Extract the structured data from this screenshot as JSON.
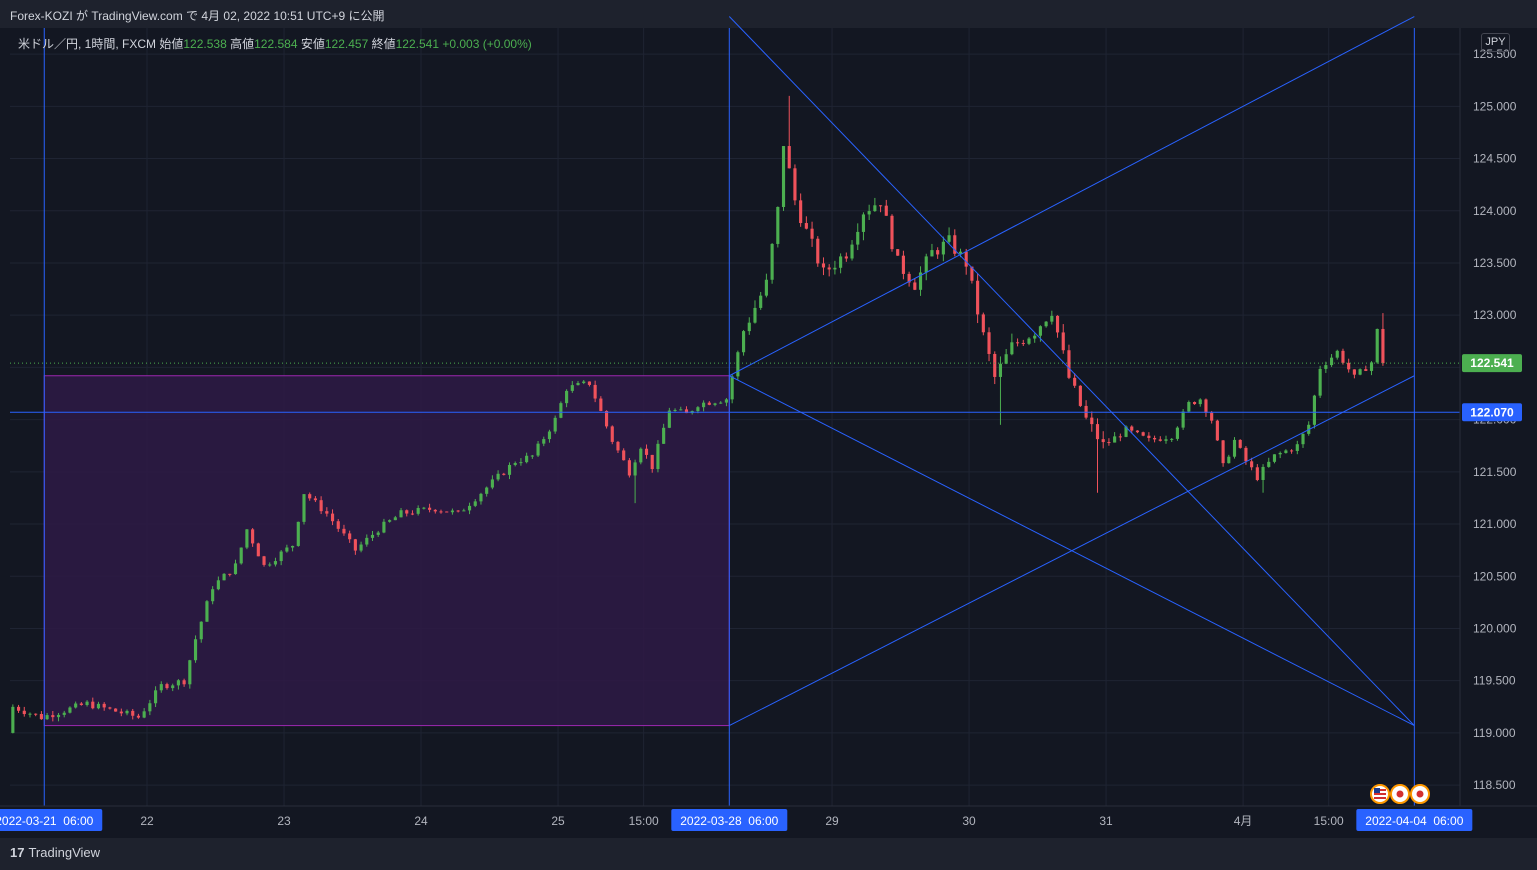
{
  "header": {
    "title": "Forex-KOZI が TradingView.com で 4月 02, 2022 10:51 UTC+9 に公開"
  },
  "legend": {
    "symbol": "米ドル／円, 1時間, FXCM",
    "open_label": "始値",
    "open": "122.538",
    "high_label": "高値",
    "high": "122.584",
    "low_label": "安値",
    "low": "122.457",
    "close_label": "終値",
    "close": "122.541",
    "change": "+0.003 (+0.00%)"
  },
  "currency": "JPY",
  "brand": {
    "logo": "17",
    "name": "TradingView"
  },
  "colors": {
    "background": "#131722",
    "up": "#4caf50",
    "down": "#f0525b",
    "drawing": "#2962ff",
    "rect_border": "#9c27b0",
    "rect_fill": "#2e1a45",
    "price_tag": "#4caf50",
    "line_tag": "#2962ff"
  },
  "chart_data": {
    "type": "candlestick",
    "instrument": "米ドル／円",
    "timeframe": "1時間",
    "y_range": [
      118.3,
      125.75
    ],
    "y_ticks": [
      "118.500",
      "119.000",
      "119.500",
      "120.000",
      "120.500",
      "121.000",
      "121.500",
      "122.000",
      "122.500",
      "123.000",
      "123.500",
      "124.000",
      "124.500",
      "125.000",
      "125.500"
    ],
    "x_range": [
      "2022-03-20 22:00",
      "2022-04-04 14:00"
    ],
    "x_ticks": [
      {
        "label": "22",
        "t": "2022-03-22 00:00"
      },
      {
        "label": "23",
        "t": "2022-03-23 00:00"
      },
      {
        "label": "24",
        "t": "2022-03-24 00:00"
      },
      {
        "label": "25",
        "t": "2022-03-25 00:00"
      },
      {
        "label": "15:00",
        "t": "2022-03-25 15:00"
      },
      {
        "label": "29",
        "t": "2022-03-29 00:00"
      },
      {
        "label": "30",
        "t": "2022-03-30 00:00"
      },
      {
        "label": "31",
        "t": "2022-03-31 00:00"
      },
      {
        "label": "4月",
        "t": "2022-04-01 00:00"
      },
      {
        "label": "15:00",
        "t": "2022-04-01 15:00"
      }
    ],
    "x_markers": [
      {
        "label": "2022-03-21  06:00",
        "t": "2022-03-21 06:00"
      },
      {
        "label": "2022-03-28  06:00",
        "t": "2022-03-28 06:00"
      },
      {
        "label": "2022-04-04  06:00",
        "t": "2022-04-04 06:00"
      }
    ],
    "last_price": {
      "value": 122.541,
      "label": "122.541"
    },
    "h_line": {
      "value": 122.07,
      "label": "122.070"
    },
    "rectangle": {
      "t1": "2022-03-21 06:00",
      "t2": "2022-03-28 06:00",
      "y1": 119.07,
      "y2": 122.42
    },
    "lines": [
      {
        "t1": "2022-03-28 06:00",
        "y1": 125.86,
        "t2": "2022-04-04 06:00",
        "y2": 119.07
      },
      {
        "t1": "2022-03-28 06:00",
        "y1": 122.42,
        "t2": "2022-04-04 06:00",
        "y2": 125.86
      },
      {
        "t1": "2022-03-28 06:00",
        "y1": 122.42,
        "t2": "2022-04-04 06:00",
        "y2": 119.07
      },
      {
        "t1": "2022-03-28 06:00",
        "y1": 119.07,
        "t2": "2022-04-04 06:00",
        "y2": 122.42
      }
    ],
    "price_path": [
      {
        "t": "2022-03-20 22:00",
        "v": 119.0
      },
      {
        "t": "2022-03-21 01:00",
        "v": 119.25
      },
      {
        "t": "2022-03-21 06:00",
        "v": 119.15
      },
      {
        "t": "2022-03-21 14:00",
        "v": 119.28
      },
      {
        "t": "2022-03-21 23:00",
        "v": 119.15
      },
      {
        "t": "2022-03-22 03:00",
        "v": 119.45
      },
      {
        "t": "2022-03-22 07:00",
        "v": 119.5
      },
      {
        "t": "2022-03-22 09:00",
        "v": 119.9
      },
      {
        "t": "2022-03-22 12:00",
        "v": 120.4
      },
      {
        "t": "2022-03-22 16:00",
        "v": 120.6
      },
      {
        "t": "2022-03-22 18:00",
        "v": 120.95
      },
      {
        "t": "2022-03-22 21:00",
        "v": 120.6
      },
      {
        "t": "2022-03-23 02:00",
        "v": 120.8
      },
      {
        "t": "2022-03-23 04:00",
        "v": 121.3
      },
      {
        "t": "2022-03-23 08:00",
        "v": 121.1
      },
      {
        "t": "2022-03-23 13:00",
        "v": 120.75
      },
      {
        "t": "2022-03-23 17:00",
        "v": 120.95
      },
      {
        "t": "2022-03-23 21:00",
        "v": 121.1
      },
      {
        "t": "2022-03-24 03:00",
        "v": 121.15
      },
      {
        "t": "2022-03-24 07:00",
        "v": 121.1
      },
      {
        "t": "2022-03-24 12:00",
        "v": 121.35
      },
      {
        "t": "2022-03-24 17:00",
        "v": 121.6
      },
      {
        "t": "2022-03-24 20:00",
        "v": 121.65
      },
      {
        "t": "2022-03-25 00:00",
        "v": 122.0
      },
      {
        "t": "2022-03-25 02:00",
        "v": 122.3
      },
      {
        "t": "2022-03-25 06:00",
        "v": 122.35
      },
      {
        "t": "2022-03-25 10:00",
        "v": 121.8
      },
      {
        "t": "2022-03-25 13:00",
        "v": 121.5
      },
      {
        "t": "2022-03-25 15:00",
        "v": 121.75
      },
      {
        "t": "2022-03-25 17:00",
        "v": 121.55
      },
      {
        "t": "2022-03-25 20:00",
        "v": 122.1
      },
      {
        "t": "2022-03-25 23:00",
        "v": 122.05
      },
      {
        "t": "2022-03-28 01:00",
        "v": 122.15
      },
      {
        "t": "2022-03-28 06:00",
        "v": 122.2
      },
      {
        "t": "2022-03-28 09:00",
        "v": 122.85
      },
      {
        "t": "2022-03-28 13:00",
        "v": 123.3
      },
      {
        "t": "2022-03-28 15:00",
        "v": 124.0
      },
      {
        "t": "2022-03-28 16:00",
        "v": 124.65
      },
      {
        "t": "2022-03-28 18:00",
        "v": 124.1
      },
      {
        "t": "2022-03-28 20:00",
        "v": 123.8
      },
      {
        "t": "2022-03-28 23:00",
        "v": 123.4
      },
      {
        "t": "2022-03-29 03:00",
        "v": 123.6
      },
      {
        "t": "2022-03-29 06:00",
        "v": 124.0
      },
      {
        "t": "2022-03-29 09:00",
        "v": 124.1
      },
      {
        "t": "2022-03-29 12:00",
        "v": 123.5
      },
      {
        "t": "2022-03-29 15:00",
        "v": 123.3
      },
      {
        "t": "2022-03-29 18:00",
        "v": 123.6
      },
      {
        "t": "2022-03-29 21:00",
        "v": 123.7
      },
      {
        "t": "2022-03-30 00:00",
        "v": 123.5
      },
      {
        "t": "2022-03-30 03:00",
        "v": 122.8
      },
      {
        "t": "2022-03-30 05:00",
        "v": 122.4
      },
      {
        "t": "2022-03-30 08:00",
        "v": 122.7
      },
      {
        "t": "2022-03-30 12:00",
        "v": 122.85
      },
      {
        "t": "2022-03-30 15:00",
        "v": 123.05
      },
      {
        "t": "2022-03-30 18:00",
        "v": 122.4
      },
      {
        "t": "2022-03-30 21:00",
        "v": 122.0
      },
      {
        "t": "2022-03-31 00:00",
        "v": 121.75
      },
      {
        "t": "2022-03-31 04:00",
        "v": 121.9
      },
      {
        "t": "2022-03-31 08:00",
        "v": 121.8
      },
      {
        "t": "2022-03-31 12:00",
        "v": 121.85
      },
      {
        "t": "2022-03-31 15:00",
        "v": 122.15
      },
      {
        "t": "2022-03-31 17:00",
        "v": 122.2
      },
      {
        "t": "2022-03-31 19:00",
        "v": 122.0
      },
      {
        "t": "2022-03-31 21:00",
        "v": 121.55
      },
      {
        "t": "2022-03-31 23:00",
        "v": 121.8
      },
      {
        "t": "2022-04-01 01:00",
        "v": 121.6
      },
      {
        "t": "2022-04-01 03:00",
        "v": 121.45
      },
      {
        "t": "2022-04-01 06:00",
        "v": 121.65
      },
      {
        "t": "2022-04-01 10:00",
        "v": 121.75
      },
      {
        "t": "2022-04-01 12:00",
        "v": 121.95
      },
      {
        "t": "2022-04-01 14:00",
        "v": 122.5
      },
      {
        "t": "2022-04-01 17:00",
        "v": 122.65
      },
      {
        "t": "2022-04-01 20:00",
        "v": 122.4
      },
      {
        "t": "2022-04-01 23:00",
        "v": 122.55
      },
      {
        "t": "2022-04-02 01:00",
        "v": 122.85
      },
      {
        "t": "2022-04-02 03:00",
        "v": 122.6
      },
      {
        "t": "2022-04-02 06:00",
        "v": 122.54
      }
    ],
    "wick_extremes": [
      {
        "t": "2022-03-28 16:00",
        "high": 125.1
      },
      {
        "t": "2022-03-30 05:00",
        "low": 121.95
      },
      {
        "t": "2022-03-25 13:00",
        "low": 121.2
      },
      {
        "t": "2022-03-30 22:00",
        "low": 121.3
      },
      {
        "t": "2022-04-01 03:00",
        "low": 121.3
      },
      {
        "t": "2022-04-02 01:00",
        "high": 123.02
      }
    ],
    "event_icons": [
      "us-flag-icon",
      "jp-flag-icon",
      "jp-flag-icon"
    ]
  }
}
